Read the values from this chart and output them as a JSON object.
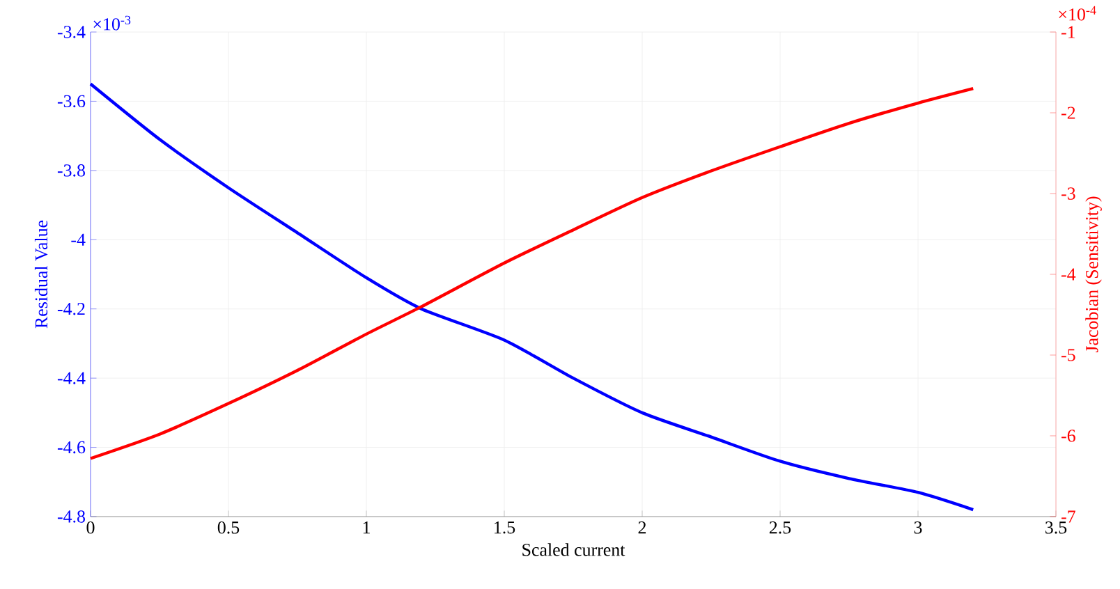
{
  "chart_data": {
    "type": "line",
    "xlabel": "Scaled current",
    "ylabel": "Residual Value",
    "y2label": "Jacobian (Sensitivity)",
    "x": [
      0,
      0.25,
      0.5,
      0.75,
      1,
      1.2,
      1.5,
      1.75,
      2,
      2.25,
      2.5,
      2.75,
      3,
      3.2
    ],
    "series": [
      {
        "color": "#0000ff",
        "values": [
          -3.55,
          -3.71,
          -3.85,
          -3.98,
          -4.11,
          -4.2,
          -4.29,
          -4.4,
          -4.5,
          -4.57,
          -4.64,
          -4.69,
          -4.73,
          -4.78
        ]
      },
      {
        "color": "#ff0000",
        "axis": "y2",
        "values": [
          -6.28,
          -5.98,
          -5.6,
          -5.19,
          -4.74,
          -4.4,
          -3.86,
          -3.45,
          -3.05,
          -2.72,
          -2.42,
          -2.13,
          -1.88,
          -1.7
        ]
      }
    ],
    "xlim": [
      0,
      3.5
    ],
    "xticks": [
      0,
      0.5,
      1,
      1.5,
      2,
      2.5,
      3,
      3.5
    ],
    "ylim": [
      -4.8,
      -3.4
    ],
    "yticks": [
      -4.8,
      -4.6,
      -4.4,
      -4.2,
      -4,
      -3.8,
      -3.6,
      -3.4
    ],
    "y2lim": [
      -7,
      -1
    ],
    "y2ticks": [
      -7,
      -6,
      -5,
      -4,
      -3,
      -2,
      -1
    ],
    "annotations": [
      "×10$^{-3}$",
      "×10$^{-4}$"
    ],
    "grid": true,
    "marker": "none",
    "line_style": "solid"
  }
}
